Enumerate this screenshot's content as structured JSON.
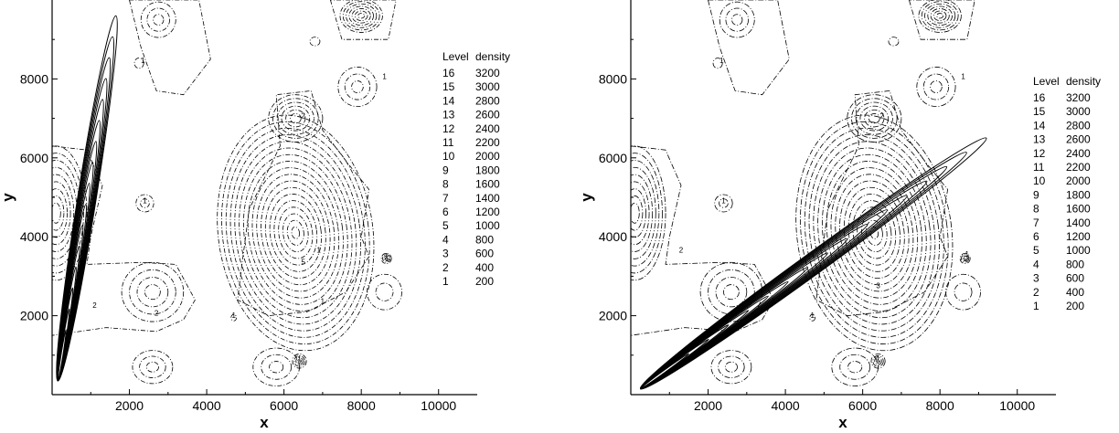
{
  "chart_data": [
    {
      "type": "contour",
      "panel": "left",
      "xlabel": "x",
      "ylabel": "y",
      "xlim": [
        0,
        11000
      ],
      "ylim": [
        0,
        10000
      ],
      "xticks": [
        2000,
        4000,
        6000,
        8000,
        10000
      ],
      "yticks": [
        2000,
        4000,
        6000,
        8000
      ],
      "legend": {
        "headers": [
          "Level",
          "density"
        ],
        "levels": [
          16,
          15,
          14,
          13,
          12,
          11,
          10,
          9,
          8,
          7,
          6,
          5,
          4,
          3,
          2,
          1
        ],
        "densities": [
          3200,
          3000,
          2800,
          2600,
          2400,
          2200,
          2000,
          1800,
          1600,
          1400,
          1200,
          1000,
          800,
          600,
          400,
          200
        ]
      },
      "contour_labels": [
        "1",
        "2",
        "5"
      ]
    },
    {
      "type": "contour",
      "panel": "right",
      "xlabel": "x",
      "ylabel": "y",
      "xlim": [
        0,
        11000
      ],
      "ylim": [
        0,
        10000
      ],
      "xticks": [
        2000,
        4000,
        6000,
        8000,
        10000
      ],
      "yticks": [
        2000,
        4000,
        6000,
        8000
      ],
      "legend": {
        "headers": [
          "Level",
          "density"
        ],
        "levels": [
          16,
          15,
          14,
          13,
          12,
          11,
          10,
          9,
          8,
          7,
          6,
          5,
          4,
          3,
          2,
          1
        ],
        "densities": [
          3200,
          3000,
          2800,
          2600,
          2400,
          2200,
          2000,
          1800,
          1600,
          1400,
          1200,
          1000,
          800,
          600,
          400,
          200
        ]
      },
      "contour_labels": [
        "1",
        "2",
        "3"
      ]
    }
  ]
}
